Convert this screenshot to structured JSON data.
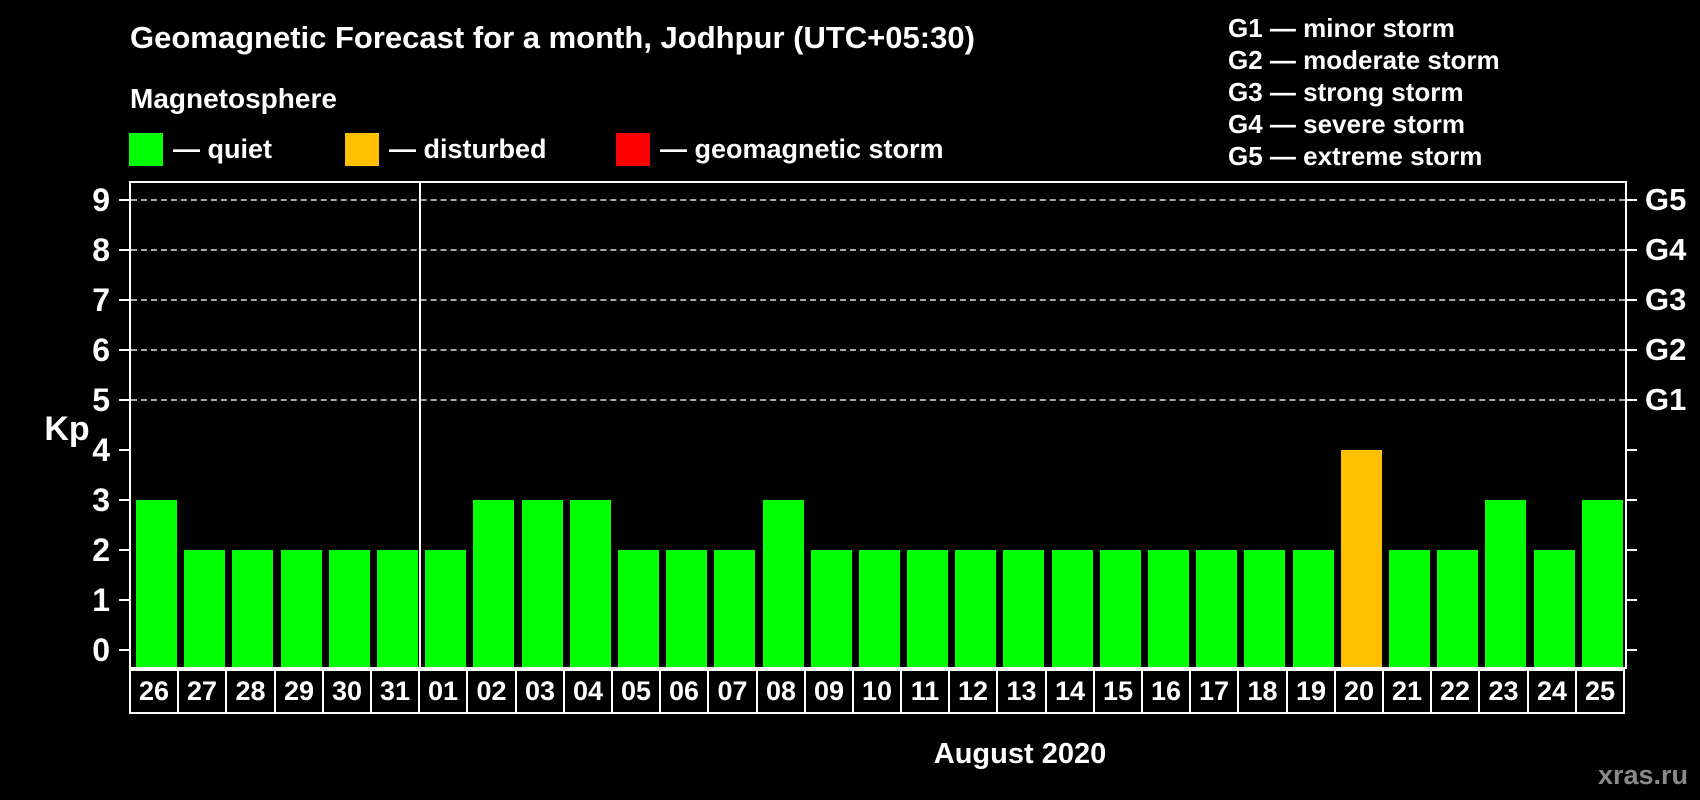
{
  "header": {
    "subtitle": "Magnetosphere"
  },
  "legend": {
    "items": [
      {
        "name": "quiet",
        "label": "— quiet",
        "color": "#00FF00"
      },
      {
        "name": "disturbed",
        "label": "— disturbed",
        "color": "#FFC000"
      },
      {
        "name": "storm",
        "label": "— geomagnetic storm",
        "color": "#FF0000"
      }
    ]
  },
  "g_legend": {
    "items": [
      "G1 — minor storm",
      "G2 — moderate storm",
      "G3 — strong storm",
      "G4 — severe storm",
      "G5 — extreme storm"
    ]
  },
  "watermark": "xras.ru",
  "colors": {
    "background": "#000000",
    "text": "#FFFFFF",
    "grid": "#A8A8A8",
    "axis": "#FFFFFF",
    "watermark": "#8A8A8A",
    "quiet": "#00FF00",
    "disturbed": "#FFC000",
    "storm": "#FF0000"
  },
  "chart_data": {
    "type": "bar",
    "title": "Geomagnetic Forecast for a month, Jodhpur (UTC+05:30)",
    "xlabel": "August 2020",
    "ylabel": "Kp",
    "ylim": [
      0,
      9
    ],
    "y_ticks": [
      0,
      1,
      2,
      3,
      4,
      5,
      6,
      7,
      8,
      9
    ],
    "gridlines_at": [
      5,
      6,
      7,
      8,
      9
    ],
    "grid": "dashed, only at Kp 5-9",
    "legend_position": "top-left",
    "categories": [
      "26",
      "27",
      "28",
      "29",
      "30",
      "31",
      "01",
      "02",
      "03",
      "04",
      "05",
      "06",
      "07",
      "08",
      "09",
      "10",
      "11",
      "12",
      "13",
      "14",
      "15",
      "16",
      "17",
      "18",
      "19",
      "20",
      "21",
      "22",
      "23",
      "24",
      "25"
    ],
    "values": [
      3,
      2,
      2,
      2,
      2,
      2,
      2,
      3,
      3,
      3,
      2,
      2,
      2,
      3,
      2,
      2,
      2,
      2,
      2,
      2,
      2,
      2,
      2,
      2,
      2,
      4,
      2,
      2,
      3,
      2,
      3
    ],
    "statuses": [
      "quiet",
      "quiet",
      "quiet",
      "quiet",
      "quiet",
      "quiet",
      "quiet",
      "quiet",
      "quiet",
      "quiet",
      "quiet",
      "quiet",
      "quiet",
      "quiet",
      "quiet",
      "quiet",
      "quiet",
      "quiet",
      "quiet",
      "quiet",
      "quiet",
      "quiet",
      "quiet",
      "quiet",
      "quiet",
      "disturbed",
      "quiet",
      "quiet",
      "quiet",
      "quiet",
      "quiet"
    ],
    "month_separator_after_index": 5,
    "right_axis_labels": [
      {
        "kp": 5,
        "label": "G1"
      },
      {
        "kp": 6,
        "label": "G2"
      },
      {
        "kp": 7,
        "label": "G3"
      },
      {
        "kp": 8,
        "label": "G4"
      },
      {
        "kp": 9,
        "label": "G5"
      }
    ]
  }
}
